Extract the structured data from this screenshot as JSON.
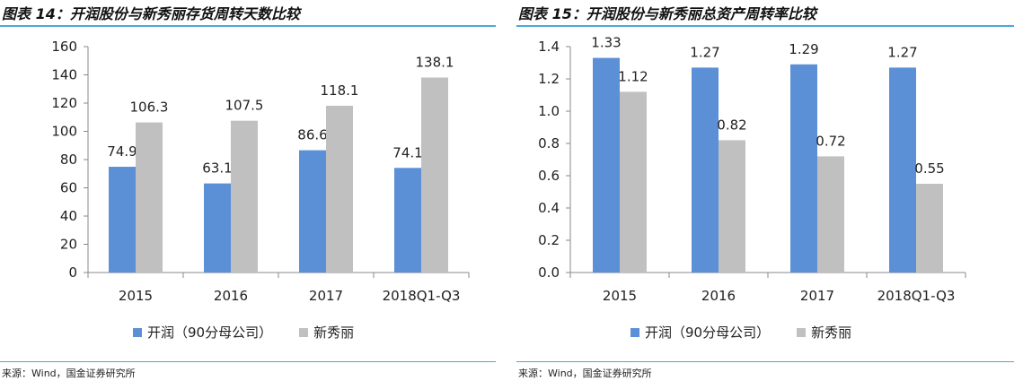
{
  "colors": {
    "kairun": "#5b8fd6",
    "xinxiuli": "#c0c0c0",
    "rule": "#4aa8d8"
  },
  "panels": [
    {
      "title": "图表 14：开润股份与新秀丽存货周转天数比较",
      "source": "来源：Wind，国金证券研究所",
      "legend": [
        "开润（90分母公司）",
        "新秀丽"
      ]
    },
    {
      "title": "图表 15：开润股份与新秀丽总资产周转率比较",
      "source": "来源：Wind，国金证券研究所",
      "legend": [
        "开润（90分母公司）",
        "新秀丽"
      ]
    }
  ],
  "chart_data": [
    {
      "type": "bar",
      "title": "开润股份与新秀丽存货周转天数比较",
      "categories": [
        "2015",
        "2016",
        "2017",
        "2018Q1-Q3"
      ],
      "series": [
        {
          "name": "开润（90分母公司）",
          "values": [
            74.9,
            63.1,
            86.6,
            74.1
          ],
          "labels": [
            "74.9",
            "63.1",
            "86.6",
            "74.1"
          ]
        },
        {
          "name": "新秀丽",
          "values": [
            106.3,
            107.5,
            118.1,
            138.1
          ],
          "labels": [
            "106.3",
            "107.5",
            "118.1",
            "138.1"
          ]
        }
      ],
      "ylim": [
        0,
        160
      ],
      "yticks": [
        "0",
        "20",
        "40",
        "60",
        "80",
        "100",
        "120",
        "140",
        "160"
      ],
      "xlabel": "",
      "ylabel": "",
      "legend_position": "bottom"
    },
    {
      "type": "bar",
      "title": "开润股份与新秀丽总资产周转率比较",
      "categories": [
        "2015",
        "2016",
        "2017",
        "2018Q1-Q3"
      ],
      "series": [
        {
          "name": "开润（90分母公司）",
          "values": [
            1.33,
            1.27,
            1.29,
            1.27
          ],
          "labels": [
            "1.33",
            "1.27",
            "1.29",
            "1.27"
          ]
        },
        {
          "name": "新秀丽",
          "values": [
            1.12,
            0.82,
            0.72,
            0.55
          ],
          "labels": [
            "1.12",
            "0.82",
            "0.72",
            "0.55"
          ]
        }
      ],
      "ylim": [
        0,
        1.4
      ],
      "yticks": [
        "0.0",
        "0.2",
        "0.4",
        "0.6",
        "0.8",
        "1.0",
        "1.2",
        "1.4"
      ],
      "xlabel": "",
      "ylabel": "",
      "legend_position": "bottom"
    }
  ]
}
